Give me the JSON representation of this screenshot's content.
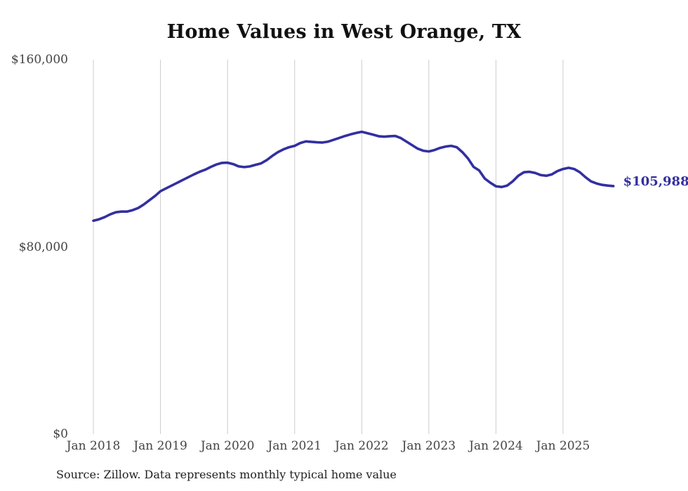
{
  "chart": {
    "title": "Home Values in West Orange, TX",
    "source": "Source: Zillow. Data represents monthly typical home value",
    "end_label": "$105,988",
    "colors": {
      "line": "#332FA0",
      "grid": "#CCCCCC",
      "axis_text": "#444444",
      "title_text": "#111111",
      "source_text": "#222222"
    }
  },
  "chart_data": {
    "type": "line",
    "title": "Home Values in West Orange, TX",
    "xlabel": "",
    "ylabel": "",
    "ylim": [
      0,
      160000
    ],
    "grid": "vertical-only",
    "legend": "none",
    "x_tick_labels": [
      "Jan 2018",
      "Jan 2019",
      "Jan 2020",
      "Jan 2021",
      "Jan 2022",
      "Jan 2023",
      "Jan 2024",
      "Jan 2025"
    ],
    "y_tick_labels": [
      "$0",
      "$80,000",
      "$160,000"
    ],
    "latest_value": 105988,
    "latest_value_label": "$105,988",
    "series": [
      {
        "name": "Monthly typical home value",
        "x": [
          "2018-01",
          "2018-02",
          "2018-03",
          "2018-04",
          "2018-05",
          "2018-06",
          "2018-07",
          "2018-08",
          "2018-09",
          "2018-10",
          "2018-11",
          "2018-12",
          "2019-01",
          "2019-02",
          "2019-03",
          "2019-04",
          "2019-05",
          "2019-06",
          "2019-07",
          "2019-08",
          "2019-09",
          "2019-10",
          "2019-11",
          "2019-12",
          "2020-01",
          "2020-02",
          "2020-03",
          "2020-04",
          "2020-05",
          "2020-06",
          "2020-07",
          "2020-08",
          "2020-09",
          "2020-10",
          "2020-11",
          "2020-12",
          "2021-01",
          "2021-02",
          "2021-03",
          "2021-04",
          "2021-05",
          "2021-06",
          "2021-07",
          "2021-08",
          "2021-09",
          "2021-10",
          "2021-11",
          "2021-12",
          "2022-01",
          "2022-02",
          "2022-03",
          "2022-04",
          "2022-05",
          "2022-06",
          "2022-07",
          "2022-08",
          "2022-09",
          "2022-10",
          "2022-11",
          "2022-12",
          "2023-01",
          "2023-02",
          "2023-03",
          "2023-04",
          "2023-05",
          "2023-06",
          "2023-07",
          "2023-08",
          "2023-09",
          "2023-10",
          "2023-11",
          "2023-12",
          "2024-01",
          "2024-02",
          "2024-03",
          "2024-04",
          "2024-05",
          "2024-06",
          "2024-07",
          "2024-08",
          "2024-09",
          "2024-10",
          "2024-11",
          "2024-12",
          "2025-01",
          "2025-02",
          "2025-03",
          "2025-04",
          "2025-05",
          "2025-06",
          "2025-07",
          "2025-08",
          "2025-09",
          "2025-10"
        ],
        "values": [
          91200,
          91800,
          92700,
          93900,
          94800,
          95100,
          95100,
          95700,
          96600,
          98100,
          99900,
          101700,
          103800,
          105000,
          106200,
          107400,
          108600,
          109800,
          111000,
          112100,
          113000,
          114200,
          115200,
          115900,
          116000,
          115400,
          114400,
          114100,
          114400,
          115100,
          115700,
          117100,
          118900,
          120500,
          121700,
          122600,
          123200,
          124400,
          125100,
          124900,
          124700,
          124600,
          125000,
          125800,
          126600,
          127400,
          128100,
          128700,
          129200,
          128600,
          128000,
          127300,
          127100,
          127300,
          127400,
          126500,
          125000,
          123500,
          122000,
          121100,
          120800,
          121400,
          122300,
          122900,
          123200,
          122600,
          120500,
          117800,
          114200,
          112700,
          109200,
          107400,
          105900,
          105600,
          106200,
          108000,
          110400,
          111900,
          112100,
          111600,
          110700,
          110400,
          111000,
          112400,
          113300,
          113800,
          113300,
          111900,
          109800,
          108000,
          107100,
          106500,
          106200,
          105988
        ]
      }
    ]
  }
}
